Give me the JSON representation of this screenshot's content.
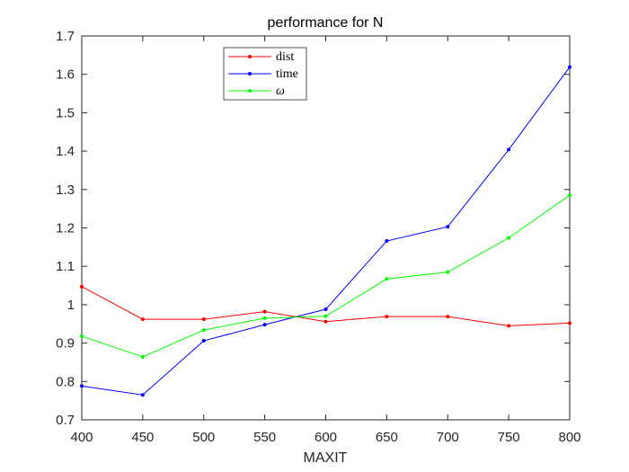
{
  "chart_data": {
    "type": "line",
    "title": "performance for N",
    "xlabel": "MAXIT",
    "ylabel": "",
    "x": [
      400,
      450,
      500,
      550,
      600,
      650,
      700,
      750,
      800
    ],
    "xlim": [
      400,
      800
    ],
    "ylim": [
      0.7,
      1.7
    ],
    "xticks": [
      "400",
      "450",
      "500",
      "550",
      "600",
      "650",
      "700",
      "750",
      "800"
    ],
    "yticks": [
      "0.7",
      "0.8",
      "0.9",
      "1",
      "1.1",
      "1.2",
      "1.3",
      "1.4",
      "1.5",
      "1.6",
      "1.7"
    ],
    "grid": false,
    "legend_position": "top-left",
    "series": [
      {
        "name": "dist",
        "color": "#ff0000",
        "values": [
          1.047,
          0.962,
          0.962,
          0.982,
          0.956,
          0.969,
          0.969,
          0.945,
          0.952
        ]
      },
      {
        "name": "time",
        "color": "#0000ff",
        "values": [
          0.788,
          0.765,
          0.906,
          0.948,
          0.988,
          1.166,
          1.203,
          1.404,
          1.619
        ]
      },
      {
        "name": "ω",
        "color": "#00ff00",
        "values": [
          0.918,
          0.864,
          0.934,
          0.965,
          0.97,
          1.067,
          1.085,
          1.174,
          1.285
        ]
      }
    ]
  }
}
